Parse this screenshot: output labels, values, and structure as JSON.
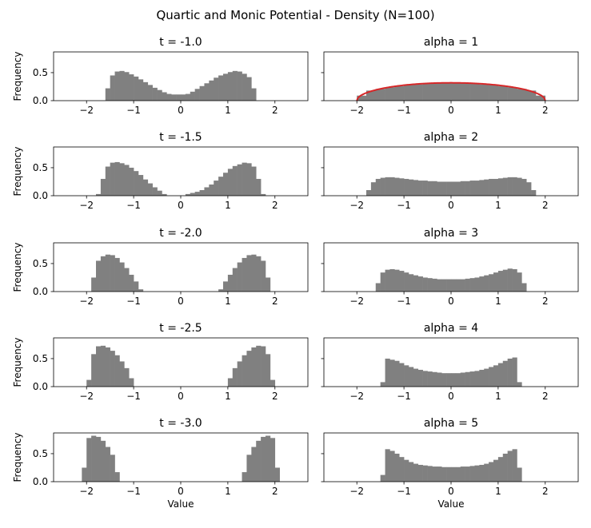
{
  "figure": {
    "title": "Quartic and Monic Potential - Density (N=100)"
  },
  "colors": {
    "bars": "#808080",
    "curve": "#d62728",
    "axes": "#000000",
    "background": "#ffffff"
  },
  "chart_data": [
    {
      "type": "bar",
      "title": "t = -1.0",
      "xlabel": "",
      "ylabel": "Frequency",
      "xlim": [
        -2.7,
        2.7
      ],
      "ylim": [
        0,
        0.87
      ],
      "xticks": [
        "-2",
        "-1",
        "0",
        "1",
        "2"
      ],
      "yticks": [
        "0.0",
        "0.5"
      ],
      "series": [
        {
          "x": [
            -1.55,
            -1.45,
            -1.35,
            -1.25,
            -1.15,
            -1.05,
            -0.95,
            -0.85,
            -0.75,
            -0.65,
            -0.55,
            -0.45,
            -0.35,
            -0.25,
            -0.15,
            -0.05,
            0.05,
            0.15,
            0.25,
            0.35,
            0.45,
            0.55,
            0.65,
            0.75,
            0.85,
            0.95,
            1.05,
            1.15,
            1.25,
            1.35,
            1.45,
            1.55
          ],
          "values": [
            0.22,
            0.45,
            0.52,
            0.53,
            0.51,
            0.47,
            0.43,
            0.38,
            0.33,
            0.28,
            0.23,
            0.19,
            0.15,
            0.12,
            0.11,
            0.11,
            0.11,
            0.12,
            0.16,
            0.21,
            0.26,
            0.31,
            0.36,
            0.41,
            0.45,
            0.48,
            0.51,
            0.53,
            0.52,
            0.48,
            0.42,
            0.22
          ]
        }
      ]
    },
    {
      "type": "bar",
      "title": "alpha = 1",
      "xlabel": "",
      "ylabel": "",
      "xlim": [
        -2.7,
        2.7
      ],
      "ylim": [
        0,
        0.87
      ],
      "xticks": [
        "-2",
        "-1",
        "0",
        "1",
        "2"
      ],
      "yticks": [],
      "series": [
        {
          "x": [
            -1.9,
            -1.7,
            -1.5,
            -1.3,
            -1.1,
            -0.9,
            -0.7,
            -0.5,
            -0.3,
            -0.1,
            0.1,
            0.3,
            0.5,
            0.7,
            0.9,
            1.1,
            1.3,
            1.5,
            1.7,
            1.9
          ],
          "values": [
            0.09,
            0.18,
            0.21,
            0.24,
            0.26,
            0.28,
            0.29,
            0.3,
            0.31,
            0.31,
            0.31,
            0.31,
            0.3,
            0.29,
            0.28,
            0.26,
            0.24,
            0.21,
            0.18,
            0.09
          ]
        }
      ],
      "curve": {
        "name": "semicircle",
        "x_range": [
          -2,
          2
        ],
        "formula": "sqrt(4-x^2)/(2*pi)"
      }
    },
    {
      "type": "bar",
      "title": "t = -1.5",
      "xlabel": "",
      "ylabel": "Frequency",
      "xlim": [
        -2.7,
        2.7
      ],
      "ylim": [
        0,
        0.87
      ],
      "xticks": [
        "-2",
        "-1",
        "0",
        "1",
        "2"
      ],
      "yticks": [
        "0.0",
        "0.5"
      ],
      "series": [
        {
          "x": [
            -1.75,
            -1.65,
            -1.55,
            -1.45,
            -1.35,
            -1.25,
            -1.15,
            -1.05,
            -0.95,
            -0.85,
            -0.75,
            -0.65,
            -0.55,
            -0.45,
            -0.35,
            0.15,
            0.25,
            0.35,
            0.45,
            0.55,
            0.65,
            0.75,
            0.85,
            0.95,
            1.05,
            1.15,
            1.25,
            1.35,
            1.45,
            1.55,
            1.65,
            1.75
          ],
          "values": [
            0.03,
            0.3,
            0.52,
            0.59,
            0.6,
            0.58,
            0.55,
            0.5,
            0.44,
            0.37,
            0.29,
            0.22,
            0.15,
            0.09,
            0.03,
            0.03,
            0.05,
            0.07,
            0.1,
            0.15,
            0.2,
            0.27,
            0.34,
            0.41,
            0.48,
            0.53,
            0.56,
            0.59,
            0.58,
            0.52,
            0.3,
            0.03
          ]
        }
      ]
    },
    {
      "type": "bar",
      "title": "alpha = 2",
      "xlabel": "",
      "ylabel": "",
      "xlim": [
        -2.7,
        2.7
      ],
      "ylim": [
        0,
        0.87
      ],
      "xticks": [
        "-2",
        "-1",
        "0",
        "1",
        "2"
      ],
      "yticks": [],
      "series": [
        {
          "x": [
            -1.75,
            -1.65,
            -1.55,
            -1.45,
            -1.35,
            -1.25,
            -1.15,
            -1.05,
            -0.95,
            -0.85,
            -0.75,
            -0.65,
            -0.55,
            -0.45,
            -0.35,
            -0.25,
            -0.15,
            -0.05,
            0.05,
            0.15,
            0.25,
            0.35,
            0.45,
            0.55,
            0.65,
            0.75,
            0.85,
            0.95,
            1.05,
            1.15,
            1.25,
            1.35,
            1.45,
            1.55,
            1.65,
            1.75
          ],
          "values": [
            0.1,
            0.24,
            0.3,
            0.32,
            0.33,
            0.33,
            0.32,
            0.31,
            0.3,
            0.29,
            0.28,
            0.27,
            0.27,
            0.26,
            0.26,
            0.25,
            0.25,
            0.25,
            0.25,
            0.25,
            0.26,
            0.26,
            0.27,
            0.27,
            0.28,
            0.29,
            0.3,
            0.3,
            0.31,
            0.32,
            0.33,
            0.33,
            0.32,
            0.3,
            0.24,
            0.1
          ]
        }
      ]
    },
    {
      "type": "bar",
      "title": "t = -2.0",
      "xlabel": "",
      "ylabel": "Frequency",
      "xlim": [
        -2.7,
        2.7
      ],
      "ylim": [
        0,
        0.87
      ],
      "xticks": [
        "-2",
        "-1",
        "0",
        "1",
        "2"
      ],
      "yticks": [
        "0.0",
        "0.5"
      ],
      "series": [
        {
          "x": [
            -1.85,
            -1.75,
            -1.65,
            -1.55,
            -1.45,
            -1.35,
            -1.25,
            -1.15,
            -1.05,
            -0.95,
            -0.85,
            0.85,
            0.95,
            1.05,
            1.15,
            1.25,
            1.35,
            1.45,
            1.55,
            1.65,
            1.75,
            1.85
          ],
          "values": [
            0.25,
            0.55,
            0.63,
            0.66,
            0.65,
            0.6,
            0.52,
            0.42,
            0.3,
            0.18,
            0.04,
            0.04,
            0.18,
            0.3,
            0.42,
            0.52,
            0.6,
            0.65,
            0.66,
            0.63,
            0.55,
            0.25
          ]
        }
      ]
    },
    {
      "type": "bar",
      "title": "alpha = 3",
      "xlabel": "",
      "ylabel": "",
      "xlim": [
        -2.7,
        2.7
      ],
      "ylim": [
        0,
        0.87
      ],
      "xticks": [
        "-2",
        "-1",
        "0",
        "1",
        "2"
      ],
      "yticks": [],
      "series": [
        {
          "x": [
            -1.55,
            -1.45,
            -1.35,
            -1.25,
            -1.15,
            -1.05,
            -0.95,
            -0.85,
            -0.75,
            -0.65,
            -0.55,
            -0.45,
            -0.35,
            -0.25,
            -0.15,
            -0.05,
            0.05,
            0.15,
            0.25,
            0.35,
            0.45,
            0.55,
            0.65,
            0.75,
            0.85,
            0.95,
            1.05,
            1.15,
            1.25,
            1.35,
            1.45,
            1.55
          ],
          "values": [
            0.15,
            0.34,
            0.39,
            0.4,
            0.39,
            0.37,
            0.34,
            0.31,
            0.29,
            0.27,
            0.25,
            0.24,
            0.23,
            0.22,
            0.22,
            0.22,
            0.22,
            0.22,
            0.22,
            0.23,
            0.24,
            0.25,
            0.27,
            0.29,
            0.31,
            0.34,
            0.37,
            0.39,
            0.41,
            0.4,
            0.34,
            0.15
          ]
        }
      ]
    },
    {
      "type": "bar",
      "title": "t = -2.5",
      "xlabel": "",
      "ylabel": "Frequency",
      "xlim": [
        -2.7,
        2.7
      ],
      "ylim": [
        0,
        0.87
      ],
      "xticks": [
        "-2",
        "-1",
        "0",
        "1",
        "2"
      ],
      "yticks": [
        "0.0",
        "0.5"
      ],
      "series": [
        {
          "x": [
            -1.95,
            -1.85,
            -1.75,
            -1.65,
            -1.55,
            -1.45,
            -1.35,
            -1.25,
            -1.15,
            -1.05,
            1.05,
            1.15,
            1.25,
            1.35,
            1.45,
            1.55,
            1.65,
            1.75,
            1.85,
            1.95
          ],
          "values": [
            0.12,
            0.58,
            0.72,
            0.73,
            0.7,
            0.64,
            0.56,
            0.45,
            0.33,
            0.15,
            0.15,
            0.33,
            0.45,
            0.56,
            0.64,
            0.7,
            0.73,
            0.72,
            0.58,
            0.12
          ]
        }
      ]
    },
    {
      "type": "bar",
      "title": "alpha = 4",
      "xlabel": "",
      "ylabel": "",
      "xlim": [
        -2.7,
        2.7
      ],
      "ylim": [
        0,
        0.87
      ],
      "xticks": [
        "-2",
        "-1",
        "0",
        "1",
        "2"
      ],
      "yticks": [],
      "series": [
        {
          "x": [
            -1.45,
            -1.35,
            -1.25,
            -1.15,
            -1.05,
            -0.95,
            -0.85,
            -0.75,
            -0.65,
            -0.55,
            -0.45,
            -0.35,
            -0.25,
            -0.15,
            -0.05,
            0.05,
            0.15,
            0.25,
            0.35,
            0.45,
            0.55,
            0.65,
            0.75,
            0.85,
            0.95,
            1.05,
            1.15,
            1.25,
            1.35,
            1.45
          ],
          "values": [
            0.08,
            0.5,
            0.48,
            0.46,
            0.42,
            0.38,
            0.35,
            0.32,
            0.3,
            0.28,
            0.27,
            0.26,
            0.25,
            0.24,
            0.24,
            0.24,
            0.24,
            0.25,
            0.26,
            0.27,
            0.28,
            0.3,
            0.32,
            0.35,
            0.38,
            0.42,
            0.46,
            0.5,
            0.52,
            0.08
          ]
        }
      ]
    },
    {
      "type": "bar",
      "title": "t = -3.0",
      "xlabel": "Value",
      "ylabel": "Frequency",
      "xlim": [
        -2.7,
        2.7
      ],
      "ylim": [
        0,
        0.87
      ],
      "xticks": [
        "-2",
        "-1",
        "0",
        "1",
        "2"
      ],
      "yticks": [
        "0.0",
        "0.5"
      ],
      "series": [
        {
          "x": [
            -2.05,
            -1.95,
            -1.85,
            -1.75,
            -1.65,
            -1.55,
            -1.45,
            -1.35,
            1.35,
            1.45,
            1.55,
            1.65,
            1.75,
            1.85,
            1.95,
            2.05
          ],
          "values": [
            0.25,
            0.78,
            0.82,
            0.8,
            0.73,
            0.62,
            0.48,
            0.17,
            0.17,
            0.48,
            0.62,
            0.73,
            0.8,
            0.82,
            0.78,
            0.25
          ]
        }
      ]
    },
    {
      "type": "bar",
      "title": "alpha = 5",
      "xlabel": "Value",
      "ylabel": "",
      "xlim": [
        -2.7,
        2.7
      ],
      "ylim": [
        0,
        0.87
      ],
      "xticks": [
        "-2",
        "-1",
        "0",
        "1",
        "2"
      ],
      "yticks": [],
      "series": [
        {
          "x": [
            -1.45,
            -1.35,
            -1.25,
            -1.15,
            -1.05,
            -0.95,
            -0.85,
            -0.75,
            -0.65,
            -0.55,
            -0.45,
            -0.35,
            -0.25,
            -0.15,
            -0.05,
            0.05,
            0.15,
            0.25,
            0.35,
            0.45,
            0.55,
            0.65,
            0.75,
            0.85,
            0.95,
            1.05,
            1.15,
            1.25,
            1.35,
            1.45
          ],
          "values": [
            0.12,
            0.58,
            0.55,
            0.5,
            0.44,
            0.39,
            0.35,
            0.32,
            0.3,
            0.29,
            0.28,
            0.27,
            0.27,
            0.26,
            0.26,
            0.26,
            0.26,
            0.27,
            0.27,
            0.28,
            0.29,
            0.3,
            0.32,
            0.35,
            0.39,
            0.44,
            0.5,
            0.55,
            0.58,
            0.25
          ]
        }
      ]
    }
  ]
}
